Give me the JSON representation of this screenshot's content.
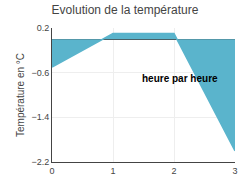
{
  "chart_data": {
    "type": "area",
    "title": "Evolution de la température",
    "ylabel": "Température en °C",
    "xlabel": "heure par heure",
    "x": [
      0,
      1,
      2,
      3
    ],
    "values": [
      -0.5,
      0.1,
      0.1,
      -2.0
    ],
    "color": "#5ab4cc",
    "xlim": [
      0,
      3
    ],
    "xticks": [
      0,
      1,
      2,
      3
    ],
    "ylim": [
      -2.2,
      0.2
    ],
    "yticks": [
      0.2,
      -0.6,
      -1.4,
      -2.2
    ],
    "grid": true
  }
}
